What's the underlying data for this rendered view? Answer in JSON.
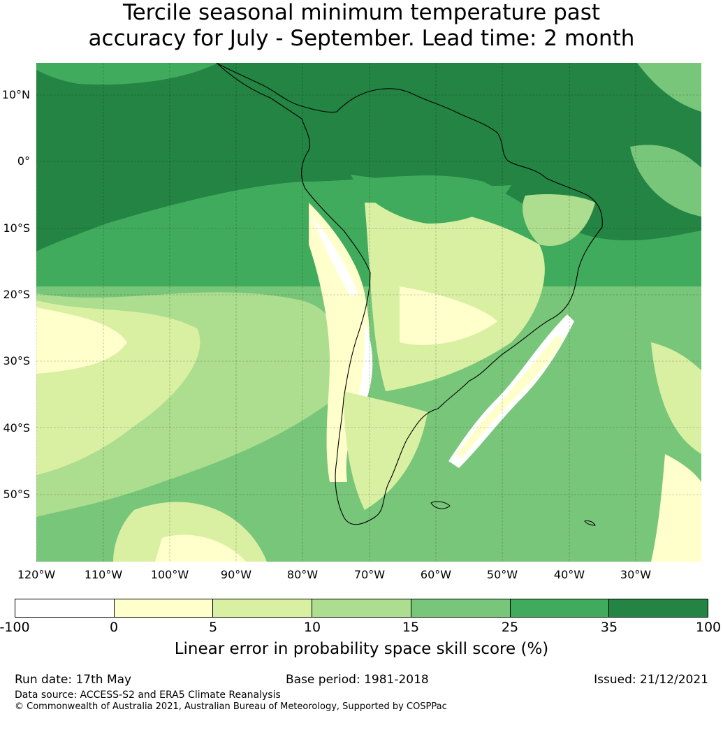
{
  "title": {
    "line1": "Tercile seasonal minimum temperature past",
    "line2": "accuracy for July - September. Lead time: 2 month"
  },
  "map": {
    "lat_labels": [
      "10°N",
      "0°",
      "10°S",
      "20°S",
      "30°S",
      "40°S",
      "50°S"
    ],
    "lon_labels": [
      "120°W",
      "110°W",
      "100°W",
      "90°W",
      "80°W",
      "70°W",
      "60°W",
      "50°W",
      "40°W",
      "30°W"
    ],
    "land_outline": "coastline-icon"
  },
  "colorbar": {
    "ticks": [
      "-100",
      "0",
      "5",
      "10",
      "15",
      "25",
      "35",
      "100"
    ],
    "colors": [
      "#ffffff",
      "#ffffcc",
      "#d9f0a3",
      "#addd8e",
      "#78c679",
      "#41ab5d",
      "#238443"
    ],
    "label": "Linear error in probability space skill score (%)"
  },
  "footer": {
    "run_date": "Run date: 17th May",
    "base_period": "Base period: 1981-2018",
    "issued": "Issued: 21/12/2021",
    "data_source": "Data source: ACCESS-S2 and ERA5 Climate Reanalysis",
    "copyright": "© Commonwealth of Australia 2021, Australian Bureau of Meteorology, Supported by COSPPac"
  }
}
